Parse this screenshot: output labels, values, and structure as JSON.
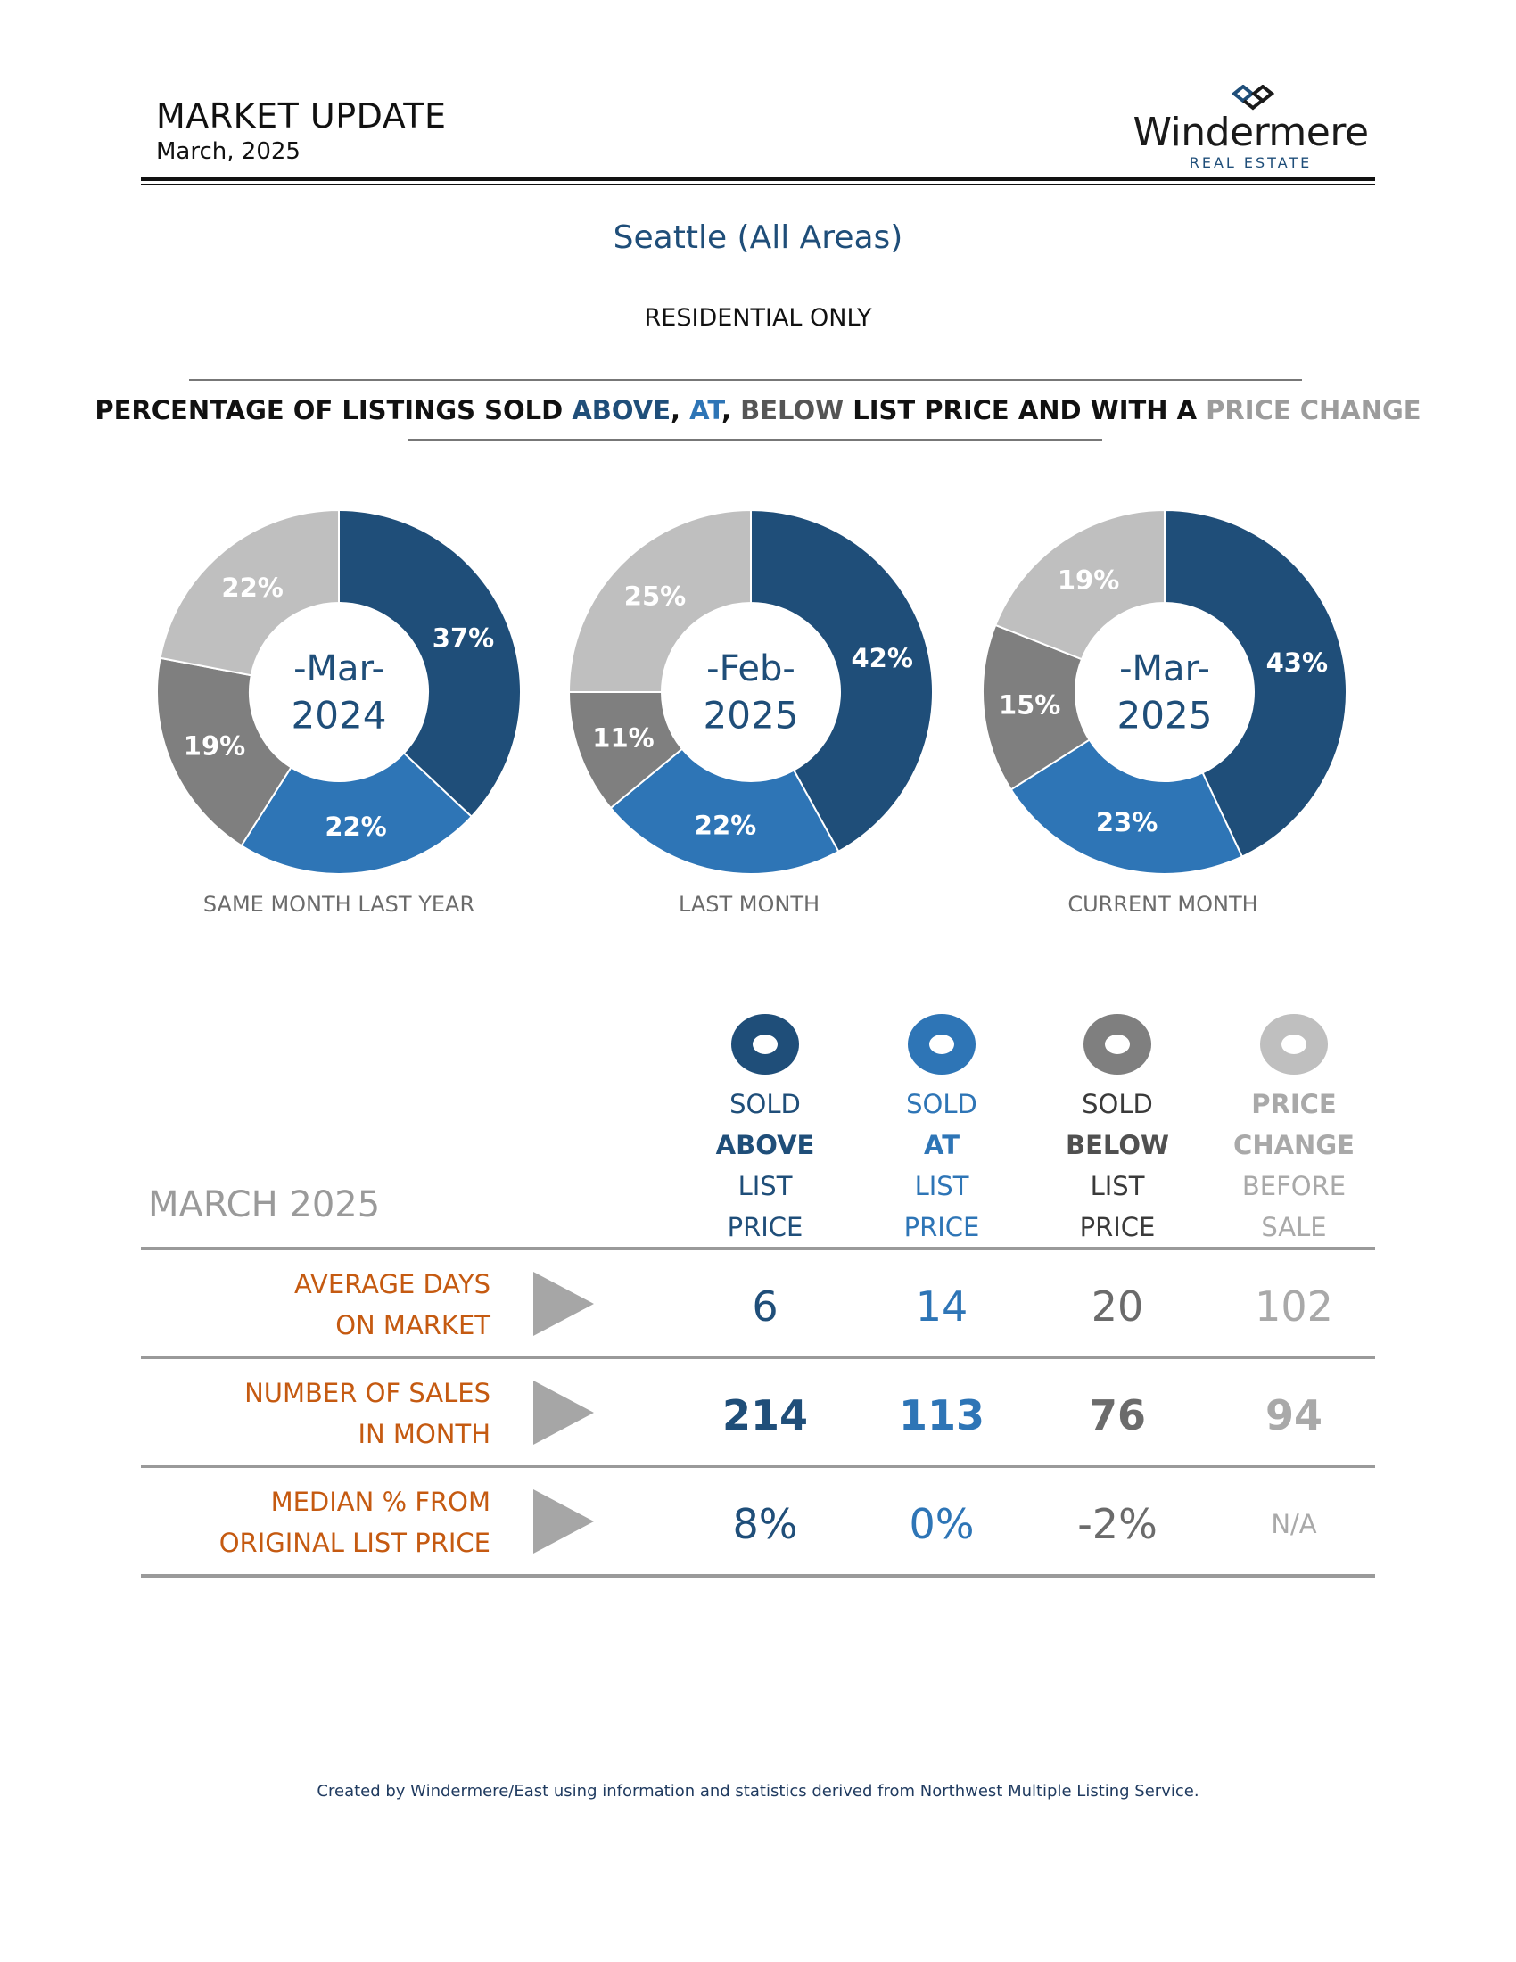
{
  "header": {
    "title": "MARKET UPDATE",
    "date": "March, 2025",
    "logo_name": "Windermere",
    "logo_sub": "REAL ESTATE"
  },
  "area_title": "Seattle (All Areas)",
  "subtitle": "RESIDENTIAL ONLY",
  "pct_title": {
    "lead": "PERCENTAGE OF LISTINGS SOLD ",
    "above": "ABOVE",
    "comma1": ", ",
    "at": "AT",
    "comma2": ", ",
    "below": "BELOW",
    "mid": " LIST PRICE AND WITH A ",
    "change": "PRICE CHANGE"
  },
  "colors": {
    "above": "#1f4e79",
    "at": "#2e75b6",
    "below": "#7f7f7f",
    "change": "#bfbfbf",
    "row_label": "#c55a11"
  },
  "chart_data": [
    {
      "type": "pie",
      "center_month": "-Mar-",
      "center_year": "2024",
      "caption": "SAME MONTH LAST YEAR",
      "slices": [
        {
          "name": "SOLD ABOVE LIST PRICE",
          "value": 37,
          "label": "37%"
        },
        {
          "name": "SOLD AT LIST PRICE",
          "value": 22,
          "label": "22%"
        },
        {
          "name": "SOLD BELOW LIST PRICE",
          "value": 19,
          "label": "19%"
        },
        {
          "name": "PRICE CHANGE BEFORE SALE",
          "value": 22,
          "label": "22%"
        }
      ]
    },
    {
      "type": "pie",
      "center_month": "-Feb-",
      "center_year": "2025",
      "caption": "LAST MONTH",
      "slices": [
        {
          "name": "SOLD ABOVE LIST PRICE",
          "value": 42,
          "label": "42%"
        },
        {
          "name": "SOLD AT LIST PRICE",
          "value": 22,
          "label": "22%"
        },
        {
          "name": "SOLD BELOW LIST PRICE",
          "value": 11,
          "label": "11%"
        },
        {
          "name": "PRICE CHANGE BEFORE SALE",
          "value": 25,
          "label": "25%"
        }
      ]
    },
    {
      "type": "pie",
      "center_month": "-Mar-",
      "center_year": "2025",
      "caption": "CURRENT MONTH",
      "slices": [
        {
          "name": "SOLD ABOVE LIST PRICE",
          "value": 43,
          "label": "43%"
        },
        {
          "name": "SOLD AT LIST PRICE",
          "value": 23,
          "label": "23%"
        },
        {
          "name": "SOLD BELOW LIST PRICE",
          "value": 15,
          "label": "15%"
        },
        {
          "name": "PRICE CHANGE BEFORE SALE",
          "value": 19,
          "label": "19%"
        }
      ]
    }
  ],
  "table": {
    "month_label": "MARCH 2025",
    "columns": [
      {
        "key": "above",
        "lines": [
          "SOLD",
          "ABOVE",
          "LIST",
          "PRICE"
        ]
      },
      {
        "key": "at",
        "lines": [
          "SOLD",
          "AT",
          "LIST",
          "PRICE"
        ]
      },
      {
        "key": "below",
        "lines": [
          "SOLD",
          "BELOW",
          "LIST",
          "PRICE"
        ]
      },
      {
        "key": "change",
        "lines": [
          "PRICE",
          "CHANGE",
          "BEFORE",
          "SALE"
        ]
      }
    ],
    "rows": [
      {
        "label": [
          "AVERAGE DAYS",
          "ON MARKET"
        ],
        "values": [
          "6",
          "14",
          "20",
          "102"
        ]
      },
      {
        "label": [
          "NUMBER OF SALES",
          "IN MONTH"
        ],
        "values": [
          "214",
          "113",
          "76",
          "94"
        ]
      },
      {
        "label": [
          "MEDIAN % FROM",
          "ORIGINAL LIST PRICE"
        ],
        "values": [
          "8%",
          "0%",
          "-2%",
          "N/A"
        ]
      }
    ]
  },
  "footer": "Created by Windermere/East using information and statistics derived from Northwest Multiple Listing Service."
}
